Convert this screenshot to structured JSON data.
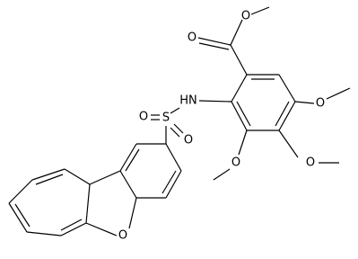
{
  "molecule": {
    "atoms": {
      "carbonyl_o": "O",
      "ester_o": "O",
      "amine": "HN",
      "sulfur": "S",
      "sulfonyl_o1": "O",
      "sulfonyl_o2": "O",
      "methoxy_o1": "O",
      "methoxy_o2": "O",
      "methoxy_o3": "O",
      "furan_o": "O"
    }
  }
}
